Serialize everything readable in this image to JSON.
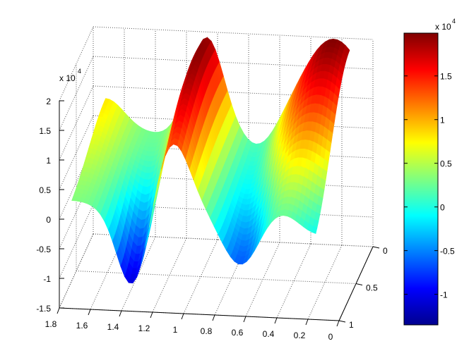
{
  "chart_data": {
    "type": "surface",
    "title": "",
    "xlabel": "",
    "ylabel": "",
    "zlabel": "",
    "x_ticks": [
      "1.8",
      "1.6",
      "1.4",
      "1.2",
      "1",
      "0.8",
      "0.6",
      "0.4",
      "0.2",
      "0"
    ],
    "x_tick_values": [
      1.8,
      1.6,
      1.4,
      1.2,
      1,
      0.8,
      0.6,
      0.4,
      0.2,
      0
    ],
    "y_ticks": [
      "0",
      "0.5",
      "1"
    ],
    "y_tick_values": [
      0,
      0.5,
      1
    ],
    "z_ticks": [
      "2",
      "1.5",
      "1",
      "0.5",
      "0",
      "-0.5",
      "-1",
      "-1.5"
    ],
    "z_tick_values": [
      2,
      1.5,
      1,
      0.5,
      0,
      -0.5,
      -1,
      -1.5
    ],
    "z_exponent_label": "x 10",
    "z_exponent_power": "4",
    "xlim": [
      0,
      1.8
    ],
    "ylim": [
      0,
      1
    ],
    "zlim": [
      -1.5,
      2
    ],
    "surface_x_range": [
      0.15,
      1.72
    ],
    "surface_y_range": [
      0,
      1
    ],
    "surface_features": [
      {
        "kind": "base",
        "value": 0.25
      },
      {
        "kind": "bump",
        "x": 1.07,
        "y": 0.2,
        "sx": 0.11,
        "sy": 0.9,
        "amp": 1.7
      },
      {
        "kind": "bump",
        "x": 0.25,
        "y": 0.0,
        "sx": 0.22,
        "sy": 0.55,
        "amp": 1.75
      },
      {
        "kind": "bump",
        "x": 1.33,
        "y": 1.0,
        "sx": 0.1,
        "sy": 0.35,
        "amp": -1.35
      },
      {
        "kind": "bump",
        "x": 0.62,
        "y": 1.0,
        "sx": 0.12,
        "sy": 0.35,
        "amp": -0.9
      },
      {
        "kind": "bump",
        "x": 0.72,
        "y": 0.3,
        "sx": 0.1,
        "sy": 0.4,
        "amp": -0.35
      },
      {
        "kind": "bump",
        "x": 1.72,
        "y": 0.0,
        "sx": 0.12,
        "sy": 0.5,
        "amp": 0.55
      },
      {
        "kind": "bump",
        "x": 0.15,
        "y": 1.0,
        "sx": 0.15,
        "sy": 0.4,
        "amp": -0.6
      }
    ],
    "colorbar": {
      "clim": [
        -1.35,
        1.99
      ],
      "ticks": [
        "1.5",
        "1",
        "0.5",
        "0",
        "-0.5",
        "-1"
      ],
      "tick_values": [
        1.5,
        1,
        0.5,
        0,
        -0.5,
        -1
      ],
      "exponent_label": "x 10",
      "exponent_power": "4",
      "colormap": "jet"
    },
    "grid": true
  }
}
